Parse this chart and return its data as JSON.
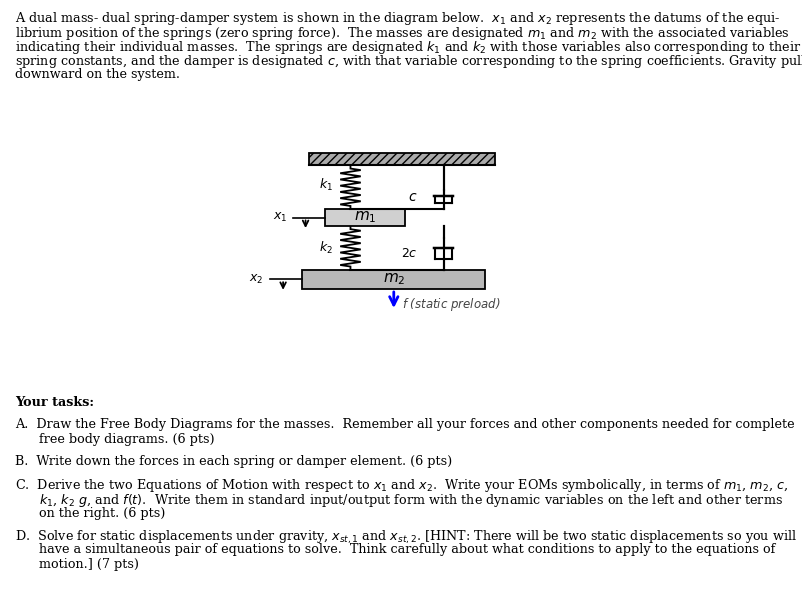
{
  "bg_color": "#ffffff",
  "fs_body": 9.2,
  "fs_label": 9.0,
  "intro_lines": [
    "A dual mass- dual spring-damper system is shown in the diagram below.  $x_1$ and $x_2$ represents the datums of the equi-",
    "librium position of the springs (zero spring force).  The masses are designated $m_1$ and $m_2$ with the associated variables",
    "indicating their individual masses.  The springs are designated $k_1$ and $k_2$ with those variables also corresponding to their",
    "spring constants, and the damper is designated $c$, with that variable corresponding to the spring coefficients. Gravity pulls",
    "downward on the system."
  ],
  "tasks_label": "Your tasks:",
  "task_A_lines": [
    "A.  Draw the Free Body Diagrams for the masses.  Remember all your forces and other components needed for complete",
    "      free body diagrams. (6 pts)"
  ],
  "task_B": "B.  Write down the forces in each spring or damper element. (6 pts)",
  "task_C_lines": [
    "C.  Derive the two Equations of Motion with respect to $x_1$ and $x_2$.  Write your EOMs symbolically, in terms of $m_1$, $m_2$, $c$,",
    "      $k_1$, $k_2$ $g$, and $f(t)$.  Write them in standard input/output form with the dynamic variables on the left and other terms",
    "      on the right. (6 pts)"
  ],
  "task_D_lines": [
    "D.  Solve for static displacements under gravity, $x_{st,1}$ and $x_{st,2}$. [HINT: There will be two static displacements so you will",
    "      have a simultaneous pair of equations to solve.  Think carefully about what conditions to apply to the equations of",
    "      motion.] (7 pts)"
  ],
  "mass1_color": "#d0d0d0",
  "mass2_color": "#b8b8b8",
  "ceiling_color": "#999999"
}
